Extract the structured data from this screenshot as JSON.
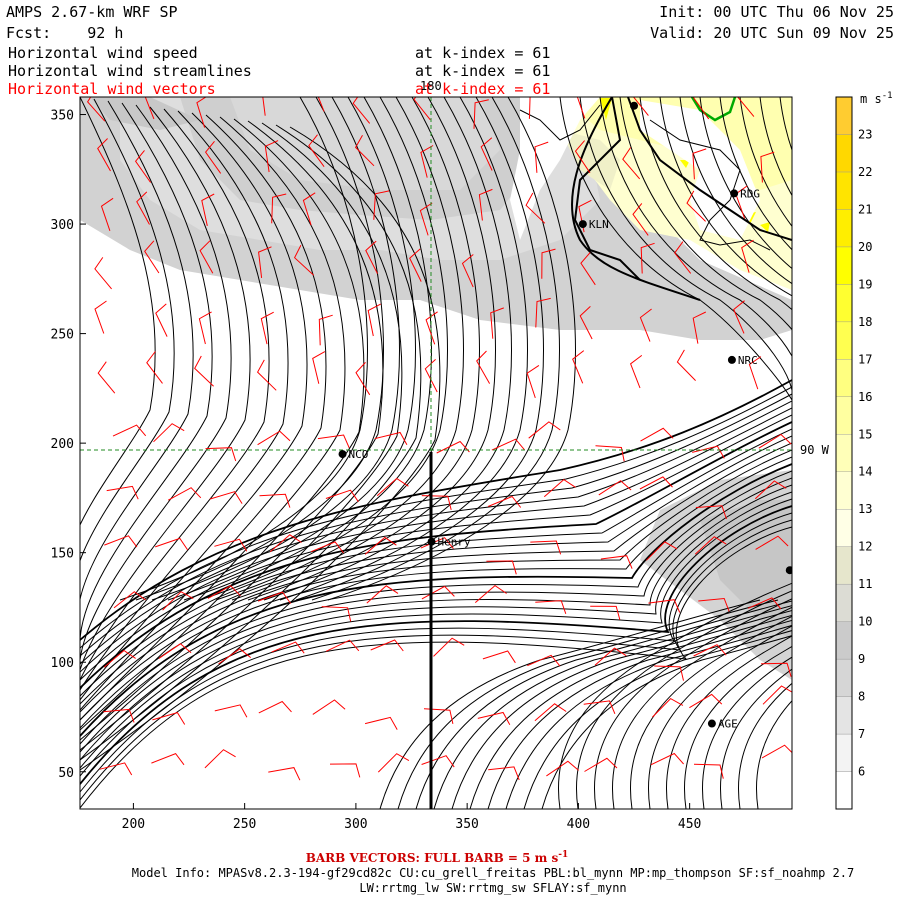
{
  "header": {
    "model_title": "AMPS 2.67-km WRF SP",
    "forecast": "Fcst:    92 h",
    "init": "Init: 00 UTC Thu 06 Nov 25",
    "valid": "Valid: 20 UTC Sun 09 Nov 25",
    "fields": [
      {
        "name": "Horizontal wind speed",
        "level": "at k-index =  61",
        "color": "#000000"
      },
      {
        "name": "Horizontal wind streamlines",
        "level": "at k-index =  61",
        "color": "#000000"
      },
      {
        "name": "Horizontal wind vectors",
        "level": "at k-index =  61",
        "color": "#ff0000"
      }
    ]
  },
  "map": {
    "x_ticks": [
      200,
      250,
      300,
      350,
      400,
      450
    ],
    "y_ticks": [
      50,
      100,
      150,
      200,
      250,
      300,
      350
    ],
    "x_range": [
      176,
      496
    ],
    "y_range": [
      33,
      358
    ],
    "ref_lon_label": "180",
    "ref_lat_label": "90 W",
    "stations": [
      {
        "id": "NCO",
        "x": 294,
        "y": 195
      },
      {
        "id": "Henry",
        "x": 334,
        "y": 155
      },
      {
        "id": "KLN",
        "x": 402,
        "y": 300
      },
      {
        "id": "RDG",
        "x": 470,
        "y": 314
      },
      {
        "id": "NRC",
        "x": 469,
        "y": 238
      },
      {
        "id": "AGE",
        "x": 460,
        "y": 72
      },
      {
        "id": "",
        "x": 425,
        "y": 354
      },
      {
        "id": "",
        "x": 495,
        "y": 142
      }
    ],
    "colors": {
      "barbs": "#ff0000",
      "streamlines": "#000000",
      "grid": "#228b22",
      "coast": "#000000",
      "ice_edge": "#00aa00"
    }
  },
  "colorbar": {
    "unit": "m s",
    "unit_exp": "-1",
    "labels": [
      6,
      7,
      8,
      9,
      10,
      11,
      12,
      13,
      14,
      15,
      16,
      17,
      18,
      19,
      20,
      21,
      22,
      23
    ],
    "colors": [
      "#ffffff",
      "#f3f3f3",
      "#e4e4e4",
      "#d6d6d6",
      "#cbcbcb",
      "#dcdcd4",
      "#e6e6cc",
      "#ffffe6",
      "#ffffd2",
      "#ffffb8",
      "#ffffa0",
      "#ffff80",
      "#ffff50",
      "#ffff30",
      "#ffff00",
      "#ffee00",
      "#ffe400",
      "#ffd800",
      "#ffcc30"
    ]
  },
  "footer": {
    "barb_label": "BARB VECTORS:  FULL BARB = 5 m s",
    "barb_exp": "-1",
    "model_info_1": "Model Info: MPASv8.2.3-194-gf29cd82c CU:cu_grell_freitas PBL:bl_mynn MP:mp_thompson SF:sf_noahmp 2.7",
    "model_info_2": "LW:rrtmg_lw SW:rrtmg_sw SFLAY:sf_mynn"
  }
}
